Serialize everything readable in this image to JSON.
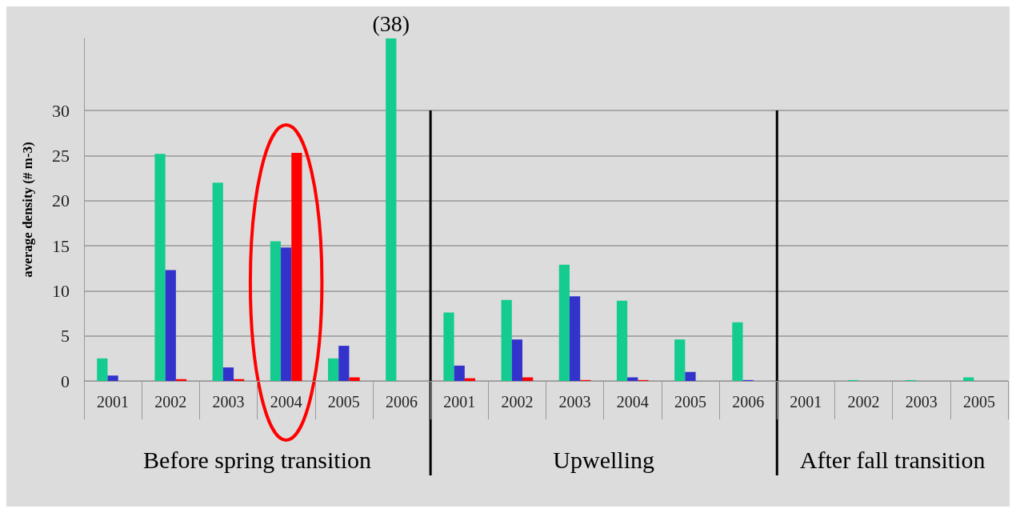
{
  "chart_data": {
    "type": "bar",
    "ylabel": "average density (# m-3)",
    "categories": [
      "2001",
      "2002",
      "2003",
      "2004",
      "2005",
      "2006",
      "2001",
      "2002",
      "2003",
      "2004",
      "2005",
      "2006",
      "2001",
      "2002",
      "2003",
      "2005"
    ],
    "series": [
      {
        "color": "#14cc90",
        "values": [
          2.5,
          25.2,
          22,
          15.5,
          2.5,
          38,
          7.6,
          9.0,
          12.9,
          8.9,
          4.6,
          6.5,
          0,
          0.1,
          0.1,
          0.4
        ],
        "value_labels": [
          null,
          null,
          null,
          null,
          null,
          "(38)",
          null,
          null,
          null,
          null,
          null,
          null,
          null,
          null,
          null,
          null
        ]
      },
      {
        "color": "#3333cc",
        "values": [
          0.6,
          12.3,
          1.5,
          14.8,
          3.9,
          0,
          1.7,
          4.6,
          9.4,
          0.4,
          1.0,
          0.1,
          0,
          0,
          0,
          0
        ]
      },
      {
        "color": "#ff0000",
        "values": [
          0,
          0.2,
          0.2,
          25.3,
          0.4,
          0,
          0.3,
          0.4,
          0.1,
          0.1,
          0,
          0,
          0,
          0,
          0,
          0
        ]
      }
    ],
    "ylim": [
      0,
      38
    ],
    "yticks": [
      0,
      5,
      10,
      15,
      20,
      25,
      30
    ],
    "grid": "y",
    "annotations": [
      "Before spring transition",
      "Upwelling",
      "After fall transition"
    ]
  }
}
